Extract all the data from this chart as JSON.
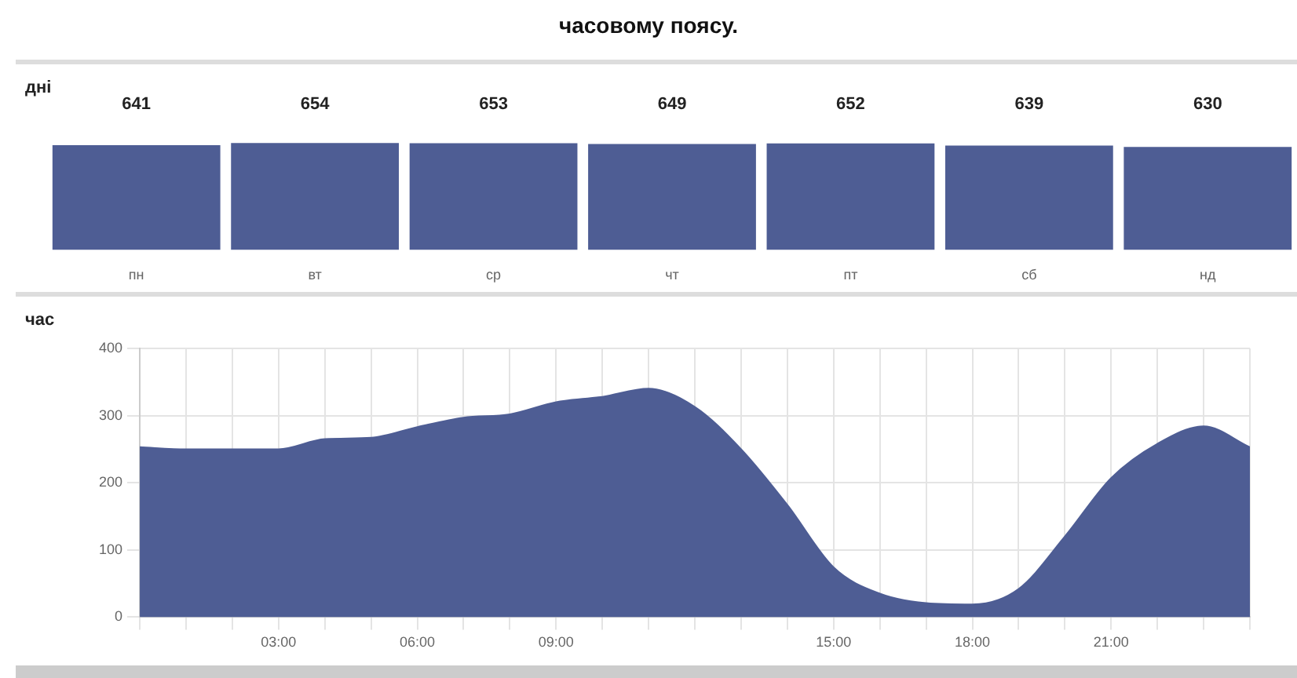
{
  "chart_data": [
    {
      "type": "bar",
      "title": "часовому поясу.",
      "ylabel": "дні",
      "categories": [
        "пн",
        "вт",
        "ср",
        "чт",
        "пт",
        "сб",
        "нд"
      ],
      "values": [
        641,
        654,
        653,
        649,
        652,
        639,
        630
      ],
      "color": "#4e5d94",
      "data_labels": true,
      "grid": false,
      "legend": false
    },
    {
      "type": "area",
      "ylabel": "час",
      "x": [
        0,
        1,
        2,
        3,
        4,
        5,
        6,
        7,
        8,
        9,
        10,
        11,
        12,
        13,
        14,
        15,
        16,
        17,
        18,
        19,
        20,
        21,
        22,
        23,
        24
      ],
      "values": [
        253,
        250,
        250,
        250,
        265,
        267,
        283,
        297,
        302,
        320,
        328,
        340,
        313,
        250,
        167,
        74,
        35,
        21,
        19,
        42,
        120,
        207,
        258,
        284,
        253
      ],
      "color": "#4e5d94",
      "xlim": [
        0,
        24
      ],
      "xticks": [
        {
          "value": 0,
          "label": null
        },
        {
          "value": 1,
          "label": null
        },
        {
          "value": 2,
          "label": null
        },
        {
          "value": 3,
          "label": "03:00"
        },
        {
          "value": 4,
          "label": null
        },
        {
          "value": 5,
          "label": null
        },
        {
          "value": 6,
          "label": "06:00"
        },
        {
          "value": 7,
          "label": null
        },
        {
          "value": 8,
          "label": null
        },
        {
          "value": 9,
          "label": "09:00"
        },
        {
          "value": 10,
          "label": null
        },
        {
          "value": 11,
          "label": null
        },
        {
          "value": 12,
          "label": null
        },
        {
          "value": 13,
          "label": null
        },
        {
          "value": 14,
          "label": null
        },
        {
          "value": 15,
          "label": "15:00"
        },
        {
          "value": 16,
          "label": null
        },
        {
          "value": 17,
          "label": null
        },
        {
          "value": 18,
          "label": "18:00"
        },
        {
          "value": 19,
          "label": null
        },
        {
          "value": 20,
          "label": null
        },
        {
          "value": 21,
          "label": "21:00"
        },
        {
          "value": 22,
          "label": null
        },
        {
          "value": 23,
          "label": null
        },
        {
          "value": 24,
          "label": null
        }
      ],
      "ylim": [
        0,
        400
      ],
      "yticks": [
        0,
        100,
        200,
        300,
        400
      ],
      "grid": true,
      "legend": false,
      "marker": "none"
    }
  ]
}
